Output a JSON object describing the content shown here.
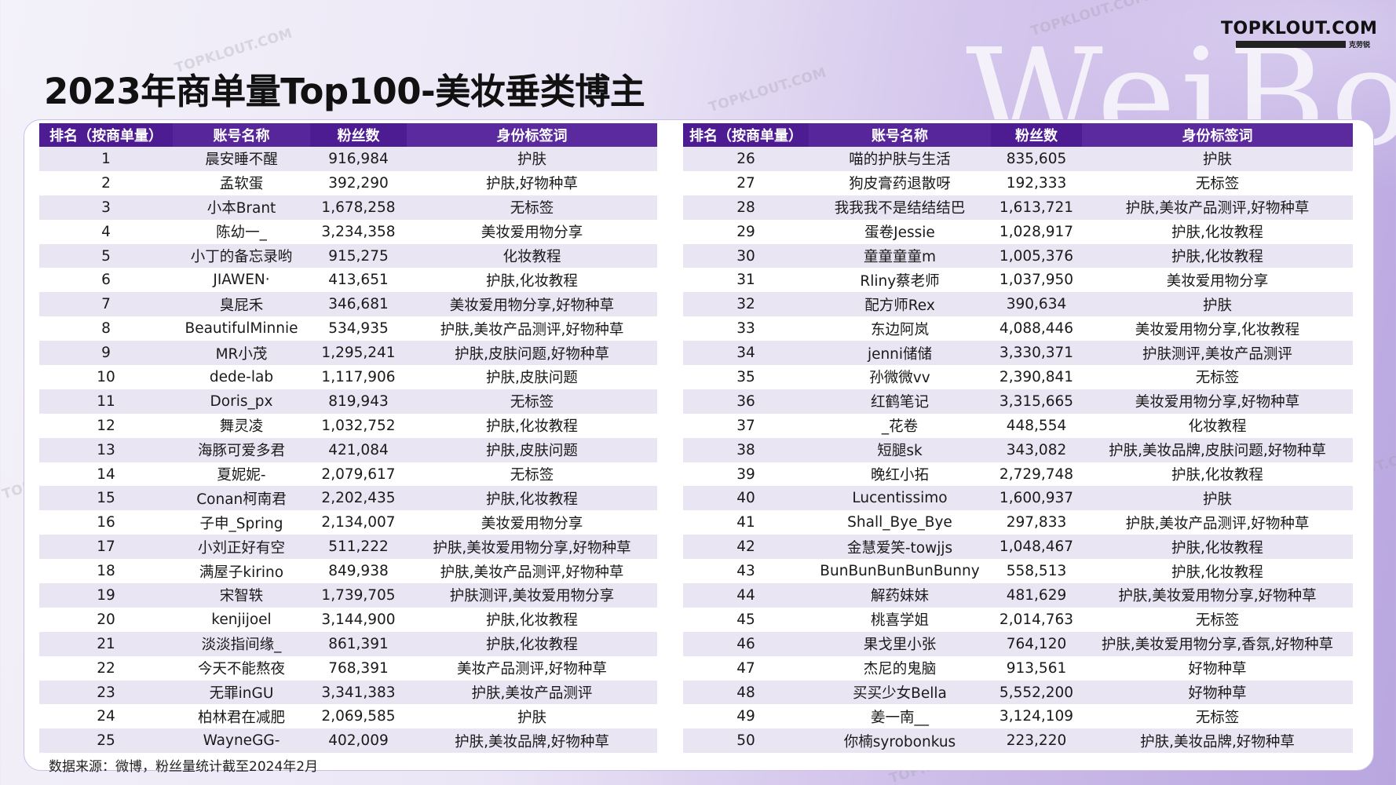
{
  "title": "2023年商单量Top100-美妆垂类博主",
  "logo": {
    "brand": "TOPKLOUT.COM",
    "tagline": "克劳锐"
  },
  "watermark_text": "TOPKLOUT.COM",
  "background_word": "WeiBo",
  "columns": [
    "排名（按商单量）",
    "账号名称",
    "粉丝数",
    "身份标签词"
  ],
  "left_rows": [
    [
      "1",
      "晨安睡不醒",
      "916,984",
      "护肤"
    ],
    [
      "2",
      "孟软蛋",
      "392,290",
      "护肤,好物种草"
    ],
    [
      "3",
      "小本Brant",
      "1,678,258",
      "无标签"
    ],
    [
      "4",
      "陈幼一_",
      "3,234,358",
      "美妆爱用物分享"
    ],
    [
      "5",
      "小丁的备忘录哟",
      "915,275",
      "化妆教程"
    ],
    [
      "6",
      "JIAWEN·",
      "413,651",
      "护肤,化妆教程"
    ],
    [
      "7",
      "臭屁禾",
      "346,681",
      "美妆爱用物分享,好物种草"
    ],
    [
      "8",
      "BeautifulMinnie",
      "534,935",
      "护肤,美妆产品测评,好物种草"
    ],
    [
      "9",
      "MR小茂",
      "1,295,241",
      "护肤,皮肤问题,好物种草"
    ],
    [
      "10",
      "dede-lab",
      "1,117,906",
      "护肤,皮肤问题"
    ],
    [
      "11",
      "Doris_px",
      "819,943",
      "无标签"
    ],
    [
      "12",
      "舞灵凌",
      "1,032,752",
      "护肤,化妆教程"
    ],
    [
      "13",
      "海豚可爱多君",
      "421,084",
      "护肤,皮肤问题"
    ],
    [
      "14",
      "夏妮妮-",
      "2,079,617",
      "无标签"
    ],
    [
      "15",
      "Conan柯南君",
      "2,202,435",
      "护肤,化妆教程"
    ],
    [
      "16",
      "子申_Spring",
      "2,134,007",
      "美妆爱用物分享"
    ],
    [
      "17",
      "小刘正好有空",
      "511,222",
      "护肤,美妆爱用物分享,好物种草"
    ],
    [
      "18",
      "满屋子kirino",
      "849,938",
      "护肤,美妆产品测评,好物种草"
    ],
    [
      "19",
      "宋智轶",
      "1,739,705",
      "护肤测评,美妆爱用物分享"
    ],
    [
      "20",
      "kenjijoel",
      "3,144,900",
      "护肤,化妆教程"
    ],
    [
      "21",
      "淡淡指间缘_",
      "861,391",
      "护肤,化妆教程"
    ],
    [
      "22",
      "今天不能熬夜",
      "768,391",
      "美妆产品测评,好物种草"
    ],
    [
      "23",
      "无罪inGU",
      "3,341,383",
      "护肤,美妆产品测评"
    ],
    [
      "24",
      "柏林君在减肥",
      "2,069,585",
      "护肤"
    ],
    [
      "25",
      "WayneGG-",
      "402,009",
      "护肤,美妆品牌,好物种草"
    ]
  ],
  "right_rows": [
    [
      "26",
      "喵的护肤与生活",
      "835,605",
      "护肤"
    ],
    [
      "27",
      "狗皮膏药退散呀",
      "192,333",
      "无标签"
    ],
    [
      "28",
      "我我我不是结结结巴",
      "1,613,721",
      "护肤,美妆产品测评,好物种草"
    ],
    [
      "29",
      "蛋卷Jessie",
      "1,028,917",
      "护肤,化妆教程"
    ],
    [
      "30",
      "童童童童m",
      "1,005,376",
      "护肤,化妆教程"
    ],
    [
      "31",
      "Rliny蔡老师",
      "1,037,950",
      "美妆爱用物分享"
    ],
    [
      "32",
      "配方师Rex",
      "390,634",
      "护肤"
    ],
    [
      "33",
      "东边阿岚",
      "4,088,446",
      "美妆爱用物分享,化妆教程"
    ],
    [
      "34",
      "jenni储储",
      "3,330,371",
      "护肤测评,美妆产品测评"
    ],
    [
      "35",
      "孙微微vv",
      "2,390,841",
      "无标签"
    ],
    [
      "36",
      "红鹤笔记",
      "3,315,665",
      "美妆爱用物分享,好物种草"
    ],
    [
      "37",
      "_花卷",
      "448,554",
      "化妆教程"
    ],
    [
      "38",
      "短腿sk",
      "343,082",
      "护肤,美妆品牌,皮肤问题,好物种草"
    ],
    [
      "39",
      "晚红小拓",
      "2,729,748",
      "护肤,化妆教程"
    ],
    [
      "40",
      "Lucentissimo",
      "1,600,937",
      "护肤"
    ],
    [
      "41",
      "Shall_Bye_Bye",
      "297,833",
      "护肤,美妆产品测评,好物种草"
    ],
    [
      "42",
      "金慧爱笑-towjjs",
      "1,048,467",
      "护肤,化妆教程"
    ],
    [
      "43",
      "BunBunBunBunBunny",
      "558,513",
      "护肤,化妆教程"
    ],
    [
      "44",
      "解药妹妹",
      "481,629",
      "护肤,美妆爱用物分享,好物种草"
    ],
    [
      "45",
      "桃喜学姐",
      "2,014,763",
      "无标签"
    ],
    [
      "46",
      "果戈里小张",
      "764,120",
      "护肤,美妆爱用物分享,香氛,好物种草"
    ],
    [
      "47",
      "杰尼的鬼脑",
      "913,561",
      "好物种草"
    ],
    [
      "48",
      "买买少女Bella",
      "5,552,200",
      "好物种草"
    ],
    [
      "49",
      "姜一南__",
      "3,124,109",
      "无标签"
    ],
    [
      "50",
      "你楠syrobonkus",
      "223,220",
      "护肤,美妆品牌,好物种草"
    ]
  ],
  "source": "数据来源：微博，粉丝量统计截至2024年2月"
}
